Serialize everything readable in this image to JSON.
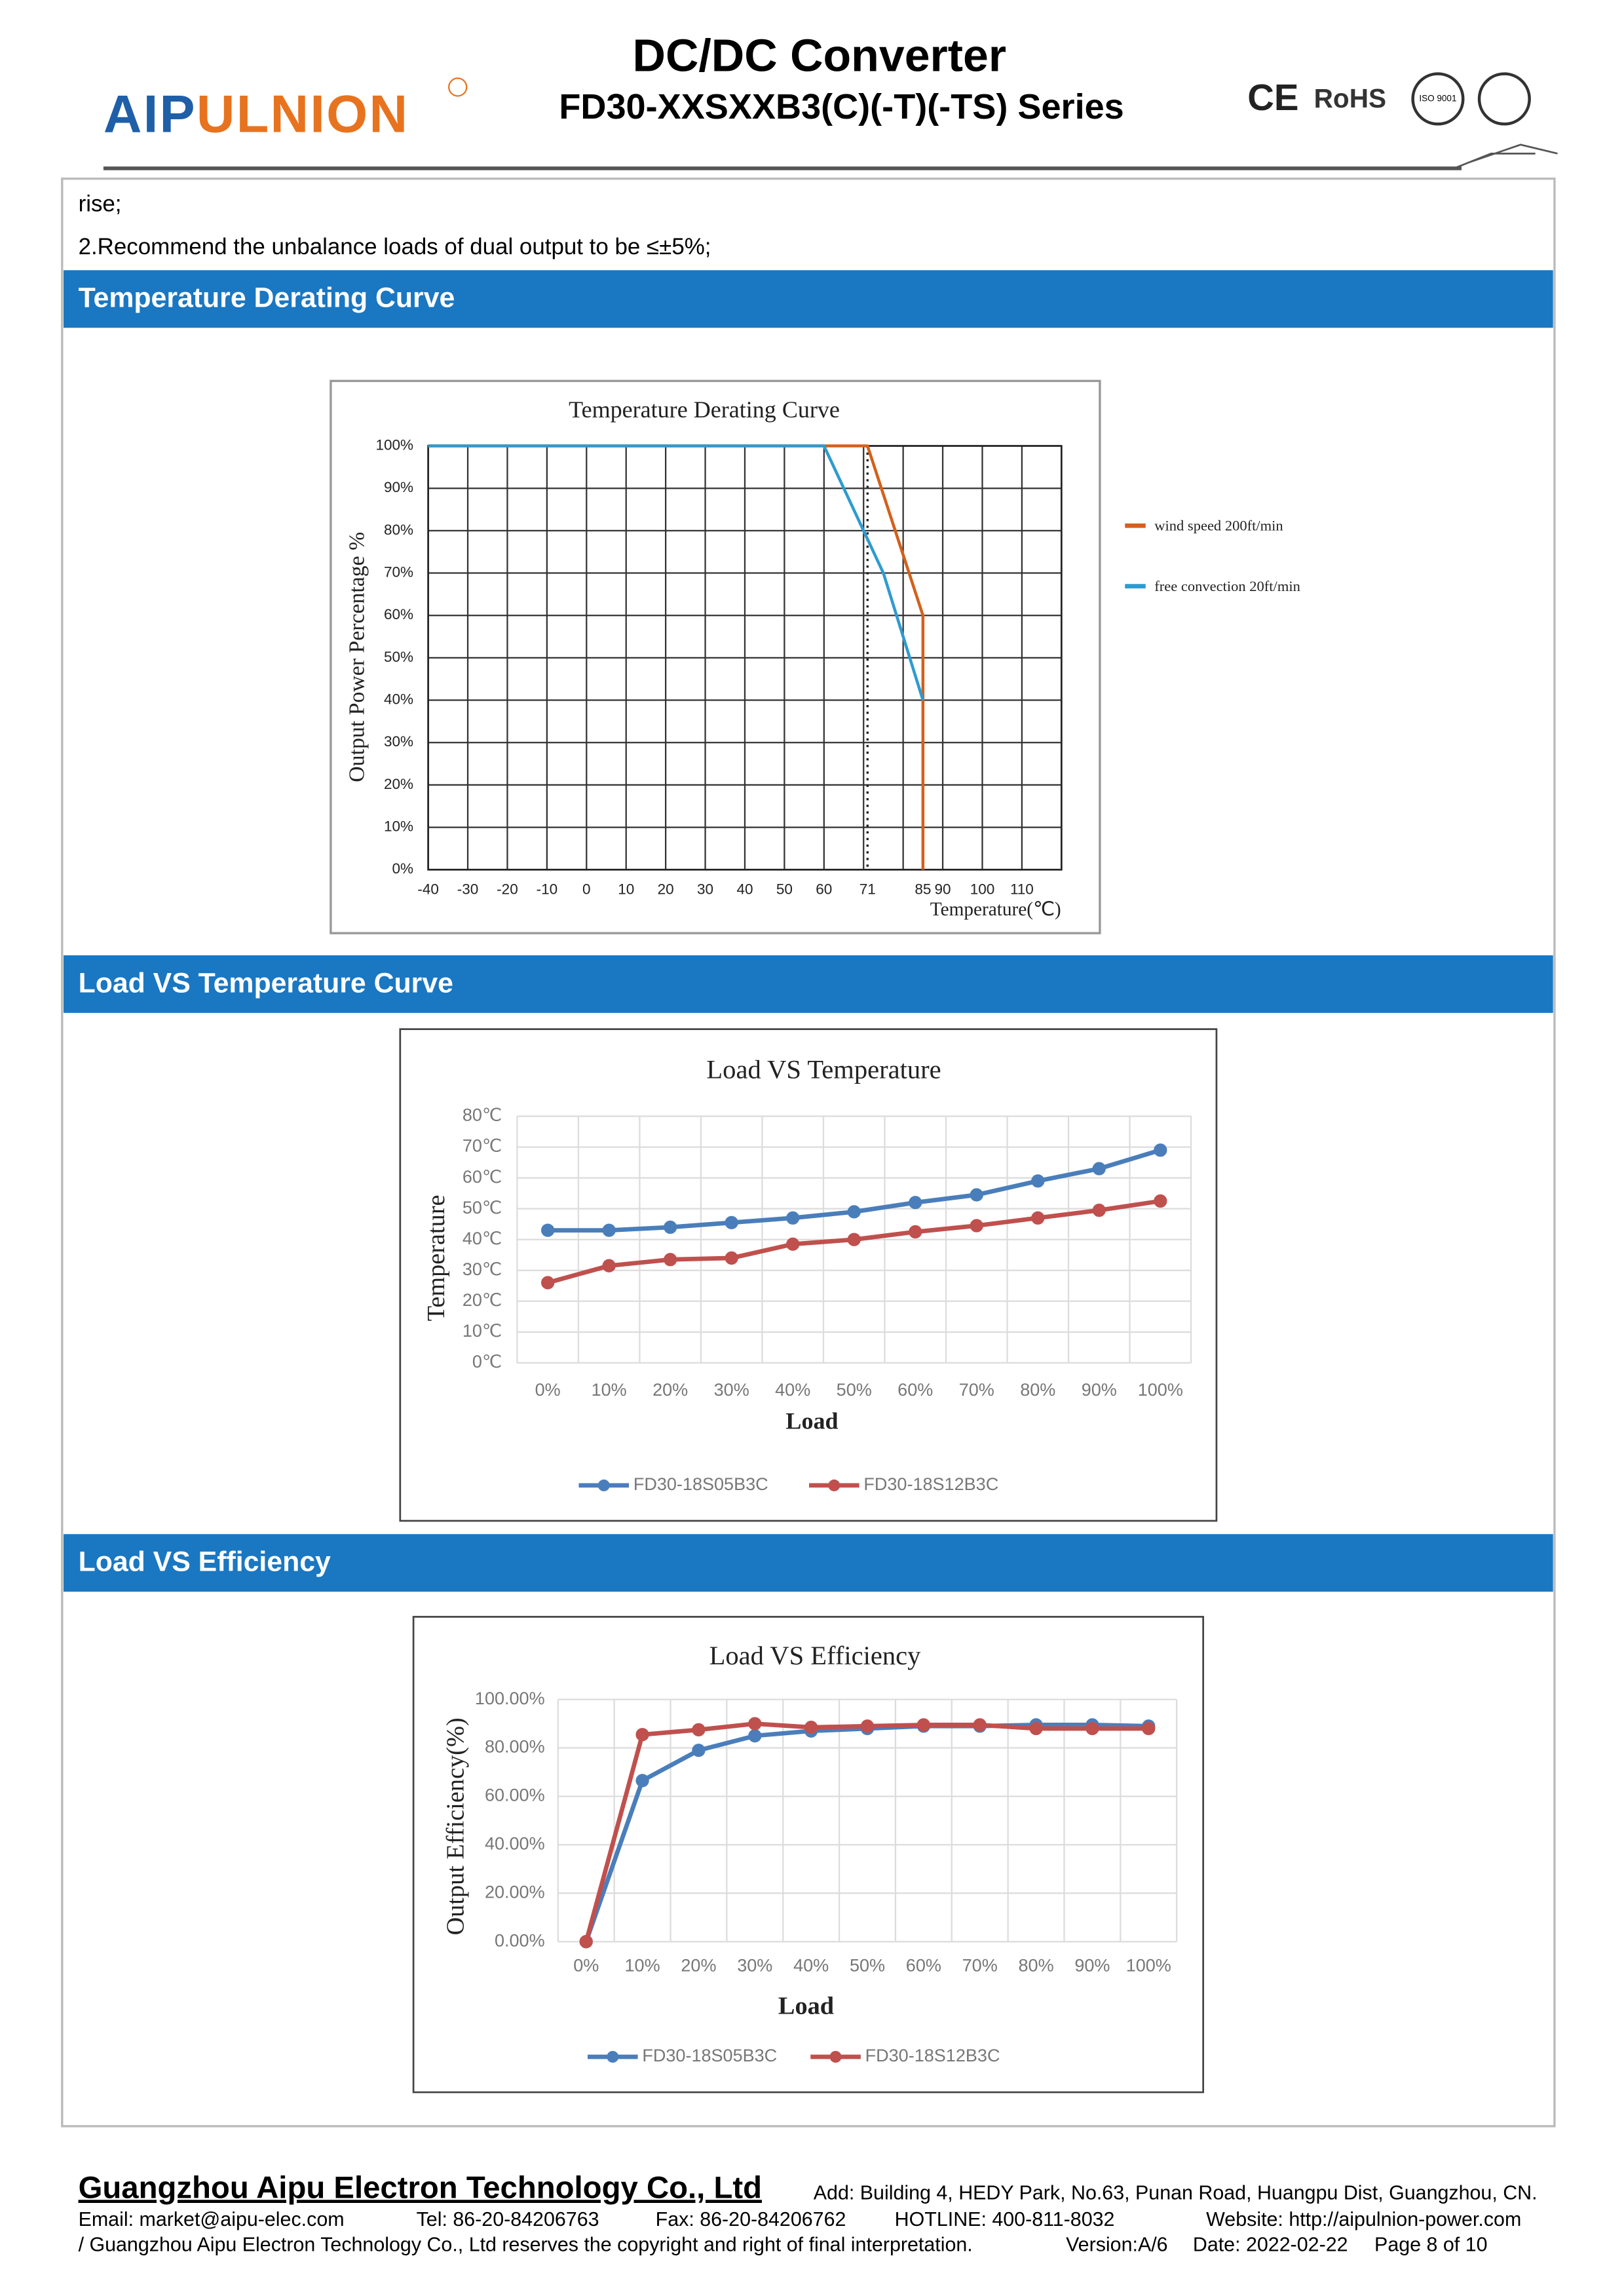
{
  "header": {
    "logo_parts": [
      "AIP",
      "ULNION"
    ],
    "title": "DC/DC Converter",
    "subtitle": "FD30-XXSXXB3(C)(-T)(-TS) Series",
    "certifications": [
      "CE",
      "RoHS"
    ],
    "iso_badge": "ISO 9001"
  },
  "notes": [
    "rise;",
    "2.Recommend the unbalance loads of dual output to be ≤±5%;"
  ],
  "sections": [
    "Temperature Derating Curve",
    "Load VS Temperature Curve",
    "Load VS Efficiency"
  ],
  "chart_data": [
    {
      "type": "line",
      "title": "Temperature Derating Curve",
      "x_label": "Temperature(℃)",
      "y_label": "Output Power Percentage %",
      "xlim": [
        -40,
        120
      ],
      "xticks": [
        -40,
        -30,
        -20,
        -10,
        0,
        10,
        20,
        30,
        40,
        50,
        60,
        71,
        85,
        90,
        100,
        110
      ],
      "xgrid": [
        -40,
        -30,
        -20,
        -10,
        0,
        10,
        20,
        30,
        40,
        50,
        60,
        70,
        80,
        90,
        100,
        110,
        120
      ],
      "ylim": [
        0,
        100
      ],
      "yticks": [
        {
          "value": 0,
          "label": "0%"
        },
        {
          "value": 10,
          "label": "10%"
        },
        {
          "value": 20,
          "label": "20%"
        },
        {
          "value": 30,
          "label": "30%"
        },
        {
          "value": 40,
          "label": "40%"
        },
        {
          "value": 50,
          "label": "50%"
        },
        {
          "value": 60,
          "label": "60%"
        },
        {
          "value": 70,
          "label": "70%"
        },
        {
          "value": 80,
          "label": "80%"
        },
        {
          "value": 90,
          "label": "90%"
        },
        {
          "value": 100,
          "label": "100%"
        }
      ],
      "grid": true,
      "reference_line_x": 71,
      "legend": "right",
      "series": [
        {
          "name": "wind speed 200ft/min",
          "color": "#d4601a",
          "x": [
            -40,
            71,
            78,
            85,
            85
          ],
          "values": [
            100,
            100,
            80,
            60,
            0
          ]
        },
        {
          "name": "free convection 20ft/min",
          "color": "#2e9bd0",
          "x": [
            -40,
            60,
            70,
            75,
            85
          ],
          "values": [
            100,
            100,
            80,
            70,
            40
          ]
        }
      ]
    },
    {
      "type": "line",
      "title": "Load VS Temperature",
      "x_label": "Load",
      "y_label": "Temperature",
      "categories": [
        "0%",
        "10%",
        "20%",
        "30%",
        "40%",
        "50%",
        "60%",
        "70%",
        "80%",
        "90%",
        "100%"
      ],
      "ylim": [
        0,
        80
      ],
      "yticks": [
        {
          "value": 0,
          "label": "0℃"
        },
        {
          "value": 10,
          "label": "10℃"
        },
        {
          "value": 20,
          "label": "20℃"
        },
        {
          "value": 30,
          "label": "30℃"
        },
        {
          "value": 40,
          "label": "40℃"
        },
        {
          "value": 50,
          "label": "50℃"
        },
        {
          "value": 60,
          "label": "60℃"
        },
        {
          "value": 70,
          "label": "70℃"
        },
        {
          "value": 80,
          "label": "80℃"
        }
      ],
      "grid": true,
      "markers": true,
      "legend": "bottom",
      "series": [
        {
          "name": "FD30-18S05B3C",
          "color": "#4a7ebb",
          "values": [
            43,
            43,
            44,
            45.5,
            47,
            49,
            52,
            54.5,
            59,
            63,
            69
          ]
        },
        {
          "name": "FD30-18S12B3C",
          "color": "#c0504d",
          "values": [
            26,
            31.5,
            33.5,
            34,
            38.5,
            40,
            42.5,
            44.5,
            47,
            49.5,
            52.5
          ]
        }
      ]
    },
    {
      "type": "line",
      "title": "Load VS Efficiency",
      "x_label": "Load",
      "y_label": "Output Efficiency(%)",
      "categories": [
        "0%",
        "10%",
        "20%",
        "30%",
        "40%",
        "50%",
        "60%",
        "70%",
        "80%",
        "90%",
        "100%"
      ],
      "ylim": [
        0,
        100
      ],
      "yticks": [
        {
          "value": 0,
          "label": "0.00%"
        },
        {
          "value": 20,
          "label": "20.00%"
        },
        {
          "value": 40,
          "label": "40.00%"
        },
        {
          "value": 60,
          "label": "60.00%"
        },
        {
          "value": 80,
          "label": "80.00%"
        },
        {
          "value": 100,
          "label": "100.00%"
        }
      ],
      "grid": true,
      "markers": true,
      "legend": "bottom",
      "series": [
        {
          "name": "FD30-18S05B3C",
          "color": "#4a7ebb",
          "values": [
            0,
            66.5,
            79,
            85,
            87,
            88,
            89,
            89,
            89.5,
            89.5,
            89
          ]
        },
        {
          "name": "FD30-18S12B3C",
          "color": "#c0504d",
          "values": [
            0,
            85.5,
            87.5,
            90,
            88.5,
            89,
            89.5,
            89.5,
            88,
            88,
            88
          ]
        }
      ]
    }
  ],
  "footer": {
    "company": "Guangzhou Aipu Electron Technology Co., Ltd",
    "address": "Add: Building 4, HEDY Park, No.63, Punan Road, Huangpu Dist, Guangzhou, CN.",
    "contacts": [
      "Email: market@aipu-elec.com",
      "Tel: 86-20-84206763",
      "Fax: 86-20-84206762",
      "HOTLINE: 400-811-8032",
      "Website: http://aipulnion-power.com"
    ],
    "copyright": "/ Guangzhou Aipu Electron Technology Co., Ltd reserves the copyright and right of final interpretation.",
    "version": "Version:A/6",
    "date": "Date: 2022-02-22",
    "page": "Page 8 of 10"
  }
}
